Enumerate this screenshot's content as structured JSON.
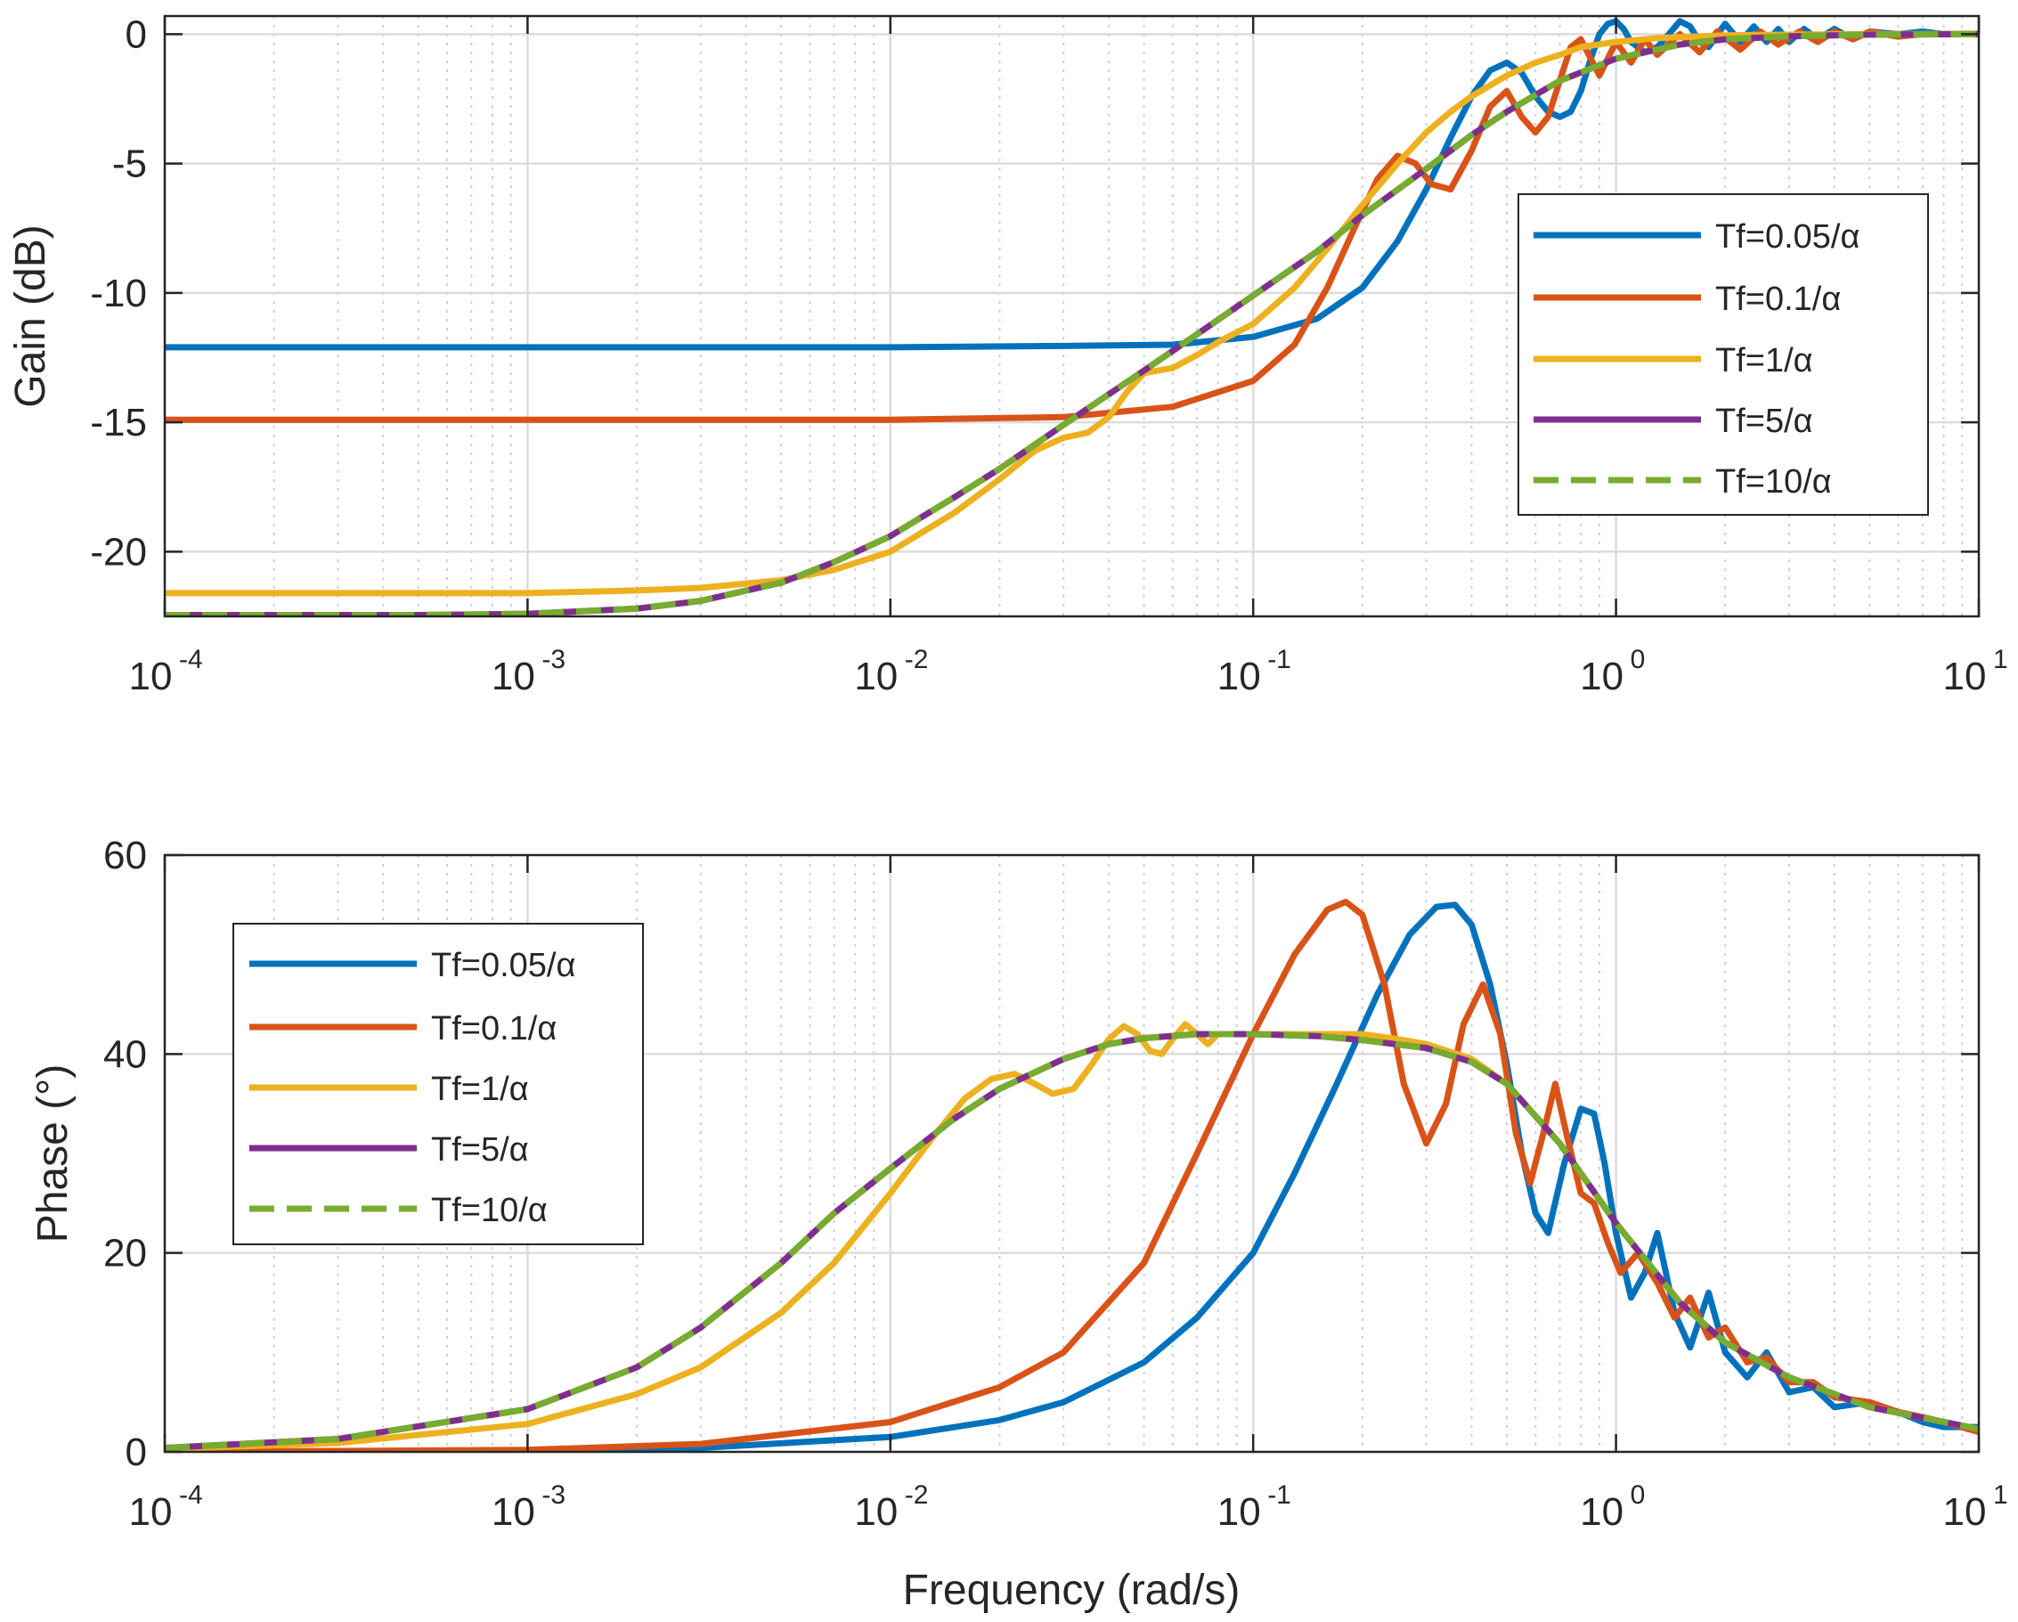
{
  "chart_data": [
    {
      "id": "gain",
      "type": "line",
      "title": "",
      "xlabel": "",
      "ylabel": "Gain (dB)",
      "xscale": "log",
      "xlim": [
        0.0001,
        10
      ],
      "ylim": [
        -22.5,
        0.7
      ],
      "xticks": [
        {
          "value": 0.0001,
          "base": "10",
          "exp": "-4"
        },
        {
          "value": 0.001,
          "base": "10",
          "exp": "-3"
        },
        {
          "value": 0.01,
          "base": "10",
          "exp": "-2"
        },
        {
          "value": 0.1,
          "base": "10",
          "exp": "-1"
        },
        {
          "value": 1,
          "base": "10",
          "exp": "0"
        },
        {
          "value": 10,
          "base": "10",
          "exp": "1"
        }
      ],
      "yticks": [
        {
          "value": 0,
          "label": "0"
        },
        {
          "value": -5,
          "label": "-5"
        },
        {
          "value": -10,
          "label": "-10"
        },
        {
          "value": -15,
          "label": "-15"
        },
        {
          "value": -20,
          "label": "-20"
        }
      ],
      "grid": true,
      "legend_position": "right",
      "series": [
        {
          "name": "Tf=0.05/α",
          "color": "#0072BD",
          "dash": false,
          "x": [
            0.0001,
            0.001,
            0.01,
            0.03,
            0.06,
            0.1,
            0.15,
            0.2,
            0.25,
            0.3,
            0.35,
            0.4,
            0.45,
            0.5,
            0.55,
            0.6,
            0.65,
            0.7,
            0.75,
            0.8,
            0.85,
            0.9,
            0.95,
            1.0,
            1.05,
            1.1,
            1.2,
            1.3,
            1.4,
            1.5,
            1.6,
            1.7,
            1.8,
            2.0,
            2.2,
            2.4,
            2.6,
            2.8,
            3.0,
            3.3,
            3.6,
            4.0,
            4.5,
            5.0,
            6.0,
            7.0,
            8.0,
            10
          ],
          "y": [
            -12.1,
            -12.1,
            -12.1,
            -12.05,
            -12.0,
            -11.7,
            -11.0,
            -9.8,
            -8.0,
            -6.0,
            -4.0,
            -2.4,
            -1.4,
            -1.1,
            -1.5,
            -2.4,
            -3.0,
            -3.2,
            -3.0,
            -2.2,
            -1.0,
            0.0,
            0.4,
            0.5,
            0.2,
            -0.3,
            -0.7,
            -0.5,
            0.0,
            0.5,
            0.3,
            -0.3,
            -0.5,
            0.4,
            -0.3,
            0.3,
            -0.3,
            0.2,
            -0.3,
            0.2,
            -0.2,
            0.2,
            -0.2,
            0.1,
            0.0,
            0.1,
            0.0,
            0.0
          ]
        },
        {
          "name": "Tf=0.1/α",
          "color": "#D95319",
          "dash": false,
          "x": [
            0.0001,
            0.001,
            0.01,
            0.03,
            0.06,
            0.1,
            0.13,
            0.16,
            0.19,
            0.22,
            0.25,
            0.28,
            0.31,
            0.35,
            0.4,
            0.45,
            0.5,
            0.55,
            0.6,
            0.65,
            0.7,
            0.75,
            0.8,
            0.9,
            1.0,
            1.1,
            1.2,
            1.3,
            1.5,
            1.7,
            1.9,
            2.2,
            2.5,
            2.8,
            3.2,
            3.6,
            4.0,
            4.5,
            5.0,
            6.0,
            7.0,
            8.0,
            10
          ],
          "y": [
            -14.9,
            -14.9,
            -14.9,
            -14.8,
            -14.4,
            -13.4,
            -12.0,
            -9.8,
            -7.5,
            -5.6,
            -4.7,
            -5.0,
            -5.8,
            -6.0,
            -4.5,
            -2.8,
            -2.2,
            -3.2,
            -3.8,
            -3.2,
            -1.8,
            -0.5,
            -0.2,
            -1.6,
            -0.3,
            -1.1,
            -0.2,
            -0.8,
            0.0,
            -0.7,
            0.1,
            -0.6,
            0.1,
            -0.4,
            0.1,
            -0.3,
            0.1,
            -0.2,
            0.1,
            -0.1,
            0.0,
            0.0,
            0.0
          ]
        },
        {
          "name": "Tf=1/α",
          "color": "#EDB120",
          "dash": false,
          "x": [
            0.0001,
            0.001,
            0.002,
            0.003,
            0.005,
            0.007,
            0.01,
            0.015,
            0.02,
            0.025,
            0.03,
            0.035,
            0.04,
            0.045,
            0.05,
            0.06,
            0.07,
            0.08,
            0.1,
            0.13,
            0.16,
            0.2,
            0.25,
            0.3,
            0.35,
            0.4,
            0.5,
            0.6,
            0.7,
            0.8,
            1.0,
            1.3,
            1.6,
            2.0,
            3.0,
            5.0,
            10
          ],
          "y": [
            -21.6,
            -21.6,
            -21.5,
            -21.4,
            -21.1,
            -20.7,
            -20.0,
            -18.5,
            -17.2,
            -16.1,
            -15.6,
            -15.4,
            -14.8,
            -13.8,
            -13.1,
            -12.9,
            -12.4,
            -11.9,
            -11.2,
            -9.8,
            -8.3,
            -6.6,
            -5.0,
            -3.8,
            -3.0,
            -2.4,
            -1.6,
            -1.1,
            -0.8,
            -0.5,
            -0.3,
            -0.15,
            -0.1,
            -0.05,
            -0.02,
            0.0,
            0.0
          ]
        },
        {
          "name": "Tf=5/α",
          "color": "#7E2F8E",
          "dash": false,
          "x": [
            0.0001,
            0.0005,
            0.001,
            0.002,
            0.003,
            0.005,
            0.007,
            0.01,
            0.015,
            0.02,
            0.03,
            0.05,
            0.07,
            0.1,
            0.15,
            0.2,
            0.3,
            0.4,
            0.5,
            0.7,
            1.0,
            1.5,
            2.0,
            3.0,
            5.0,
            10
          ],
          "y": [
            -22.45,
            -22.45,
            -22.4,
            -22.2,
            -21.9,
            -21.2,
            -20.4,
            -19.4,
            -17.9,
            -16.8,
            -15.1,
            -13.0,
            -11.6,
            -10.1,
            -8.4,
            -7.0,
            -5.2,
            -3.9,
            -3.0,
            -1.8,
            -0.95,
            -0.4,
            -0.2,
            -0.08,
            -0.02,
            0.0
          ]
        },
        {
          "name": "Tf=10/α",
          "color": "#77AC30",
          "dash": true,
          "x": [
            0.0001,
            0.0005,
            0.001,
            0.002,
            0.003,
            0.005,
            0.007,
            0.01,
            0.015,
            0.02,
            0.03,
            0.05,
            0.07,
            0.1,
            0.15,
            0.2,
            0.3,
            0.4,
            0.5,
            0.7,
            1.0,
            1.5,
            2.0,
            3.0,
            5.0,
            10
          ],
          "y": [
            -22.45,
            -22.45,
            -22.4,
            -22.2,
            -21.9,
            -21.2,
            -20.4,
            -19.4,
            -17.9,
            -16.8,
            -15.1,
            -13.0,
            -11.6,
            -10.1,
            -8.4,
            -7.0,
            -5.2,
            -3.9,
            -3.0,
            -1.8,
            -0.95,
            -0.4,
            -0.2,
            -0.08,
            -0.02,
            0.0
          ]
        }
      ]
    },
    {
      "id": "phase",
      "type": "line",
      "title": "",
      "xlabel": "Frequency (rad/s)",
      "ylabel": "Phase (°)",
      "xscale": "log",
      "xlim": [
        0.0001,
        10
      ],
      "ylim": [
        0,
        60
      ],
      "xticks": [
        {
          "value": 0.0001,
          "base": "10",
          "exp": "-4"
        },
        {
          "value": 0.001,
          "base": "10",
          "exp": "-3"
        },
        {
          "value": 0.01,
          "base": "10",
          "exp": "-2"
        },
        {
          "value": 0.1,
          "base": "10",
          "exp": "-1"
        },
        {
          "value": 1,
          "base": "10",
          "exp": "0"
        },
        {
          "value": 10,
          "base": "10",
          "exp": "1"
        }
      ],
      "yticks": [
        {
          "value": 0,
          "label": "0"
        },
        {
          "value": 20,
          "label": "20"
        },
        {
          "value": 40,
          "label": "40"
        },
        {
          "value": 60,
          "label": "60"
        }
      ],
      "grid": true,
      "legend_position": "top-left",
      "series": [
        {
          "name": "Tf=0.05/α",
          "color": "#0072BD",
          "dash": false,
          "x": [
            0.0001,
            0.001,
            0.003,
            0.01,
            0.02,
            0.03,
            0.05,
            0.07,
            0.1,
            0.13,
            0.17,
            0.22,
            0.27,
            0.32,
            0.36,
            0.4,
            0.45,
            0.5,
            0.55,
            0.6,
            0.65,
            0.72,
            0.8,
            0.87,
            0.93,
            1.0,
            1.1,
            1.2,
            1.3,
            1.45,
            1.6,
            1.8,
            2.0,
            2.3,
            2.6,
            3.0,
            3.5,
            4.0,
            5.0,
            6.0,
            7.0,
            8.0,
            10
          ],
          "y": [
            0.0,
            0.1,
            0.4,
            1.5,
            3.2,
            5.0,
            9.0,
            13.5,
            20.0,
            28.0,
            37.0,
            46.0,
            52.0,
            54.8,
            55.0,
            53.0,
            47.0,
            39.0,
            30.0,
            24.0,
            22.0,
            29.0,
            34.5,
            34.0,
            29.0,
            22.0,
            15.5,
            18.0,
            22.0,
            14.0,
            10.5,
            16.0,
            10.0,
            7.5,
            10.0,
            6.0,
            6.5,
            4.5,
            5.0,
            4.0,
            3.0,
            2.5,
            2.5
          ]
        },
        {
          "name": "Tf=0.1/α",
          "color": "#D95319",
          "dash": false,
          "x": [
            0.0001,
            0.001,
            0.003,
            0.01,
            0.02,
            0.03,
            0.05,
            0.07,
            0.1,
            0.13,
            0.16,
            0.18,
            0.2,
            0.23,
            0.26,
            0.3,
            0.34,
            0.38,
            0.43,
            0.48,
            0.53,
            0.58,
            0.63,
            0.68,
            0.73,
            0.8,
            0.87,
            0.95,
            1.03,
            1.15,
            1.3,
            1.45,
            1.6,
            1.8,
            2.0,
            2.3,
            2.6,
            3.0,
            3.5,
            4.0,
            5.0,
            6.0,
            7.0,
            8.0,
            10
          ],
          "y": [
            0.0,
            0.2,
            0.8,
            3.0,
            6.5,
            10.0,
            19.0,
            30.0,
            42.0,
            50.0,
            54.5,
            55.3,
            54.0,
            47.0,
            37.0,
            31.0,
            35.0,
            43.0,
            47.0,
            42.0,
            32.0,
            27.0,
            32.0,
            37.0,
            32.0,
            26.0,
            25.0,
            21.0,
            18.0,
            20.0,
            17.0,
            13.5,
            15.5,
            11.5,
            12.5,
            9.0,
            9.5,
            7.0,
            7.0,
            5.5,
            5.0,
            4.0,
            3.5,
            3.0,
            2.0
          ]
        },
        {
          "name": "Tf=1/α",
          "color": "#EDB120",
          "dash": false,
          "x": [
            0.0001,
            0.0003,
            0.001,
            0.002,
            0.003,
            0.005,
            0.007,
            0.01,
            0.013,
            0.016,
            0.019,
            0.022,
            0.025,
            0.028,
            0.032,
            0.036,
            0.04,
            0.044,
            0.048,
            0.052,
            0.056,
            0.06,
            0.065,
            0.07,
            0.075,
            0.08,
            0.09,
            0.1,
            0.12,
            0.15,
            0.2,
            0.25,
            0.3,
            0.4,
            0.5,
            0.7,
            1.0,
            1.5,
            2.0,
            3.0,
            5.0,
            10
          ],
          "y": [
            0.3,
            0.9,
            2.8,
            5.8,
            8.5,
            14.0,
            19.0,
            26.0,
            31.5,
            35.5,
            37.5,
            38.0,
            37.0,
            36.0,
            36.5,
            39.0,
            41.5,
            42.8,
            42.0,
            40.3,
            40.0,
            41.5,
            43.0,
            42.0,
            41.0,
            42.0,
            42.0,
            42.0,
            42.0,
            42.0,
            42.0,
            41.5,
            41.0,
            39.5,
            37.0,
            31.0,
            23.0,
            15.0,
            11.0,
            7.5,
            4.5,
            2.3
          ]
        },
        {
          "name": "Tf=5/α",
          "color": "#7E2F8E",
          "dash": false,
          "x": [
            0.0001,
            0.0003,
            0.001,
            0.002,
            0.003,
            0.005,
            0.007,
            0.01,
            0.015,
            0.02,
            0.03,
            0.04,
            0.05,
            0.07,
            0.1,
            0.15,
            0.2,
            0.3,
            0.4,
            0.5,
            0.7,
            1.0,
            1.5,
            2.0,
            3.0,
            5.0,
            10
          ],
          "y": [
            0.4,
            1.3,
            4.3,
            8.5,
            12.5,
            19.0,
            24.0,
            28.5,
            33.5,
            36.5,
            39.5,
            41.0,
            41.6,
            42.0,
            42.0,
            41.8,
            41.4,
            40.6,
            39.2,
            37.0,
            31.0,
            23.0,
            15.0,
            11.0,
            7.5,
            4.5,
            2.3
          ]
        },
        {
          "name": "Tf=10/α",
          "color": "#77AC30",
          "dash": true,
          "x": [
            0.0001,
            0.0003,
            0.001,
            0.002,
            0.003,
            0.005,
            0.007,
            0.01,
            0.015,
            0.02,
            0.03,
            0.04,
            0.05,
            0.07,
            0.1,
            0.15,
            0.2,
            0.3,
            0.4,
            0.5,
            0.7,
            1.0,
            1.5,
            2.0,
            3.0,
            5.0,
            10
          ],
          "y": [
            0.4,
            1.3,
            4.3,
            8.5,
            12.5,
            19.0,
            24.0,
            28.5,
            33.5,
            36.5,
            39.5,
            41.0,
            41.6,
            42.0,
            42.0,
            41.8,
            41.4,
            40.6,
            39.2,
            37.0,
            31.0,
            23.0,
            15.0,
            11.0,
            7.5,
            4.5,
            2.3
          ]
        }
      ]
    }
  ]
}
